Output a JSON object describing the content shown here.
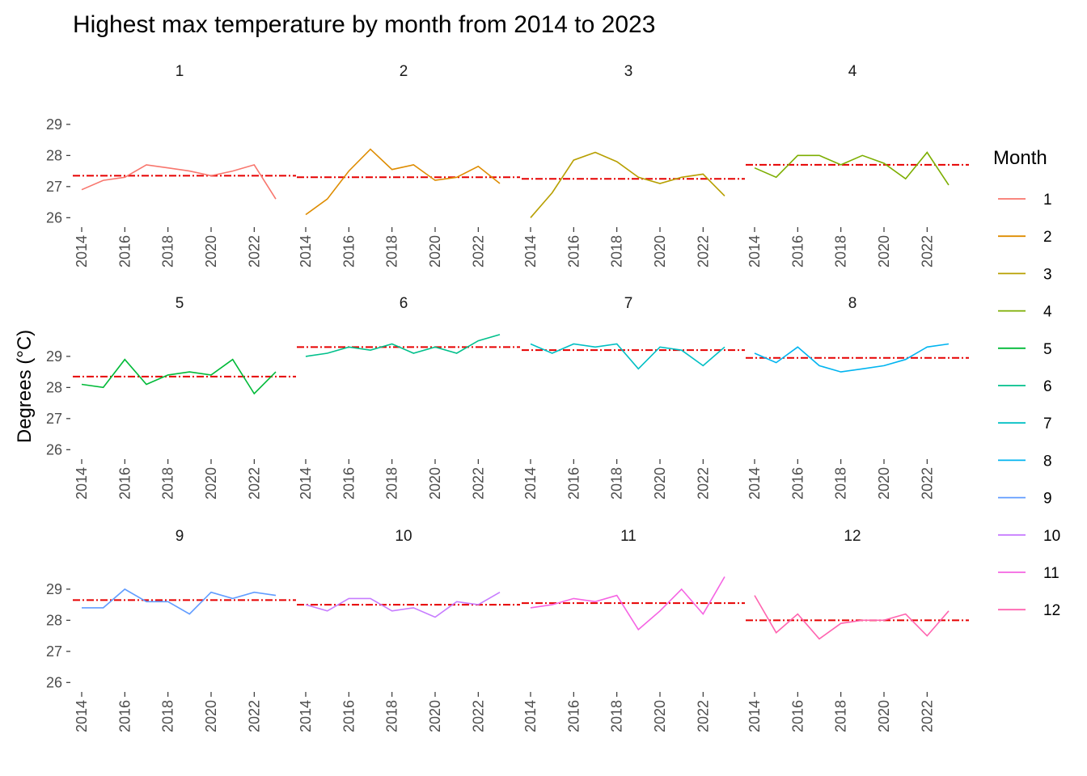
{
  "chart_data": {
    "type": "line",
    "title": "Highest max temperature by month from 2014 to 2023",
    "xlabel": "",
    "ylabel": "Degrees (°C)",
    "years": [
      2014,
      2015,
      2016,
      2017,
      2018,
      2019,
      2020,
      2021,
      2022,
      2023
    ],
    "x_ticks": [
      "2014",
      "2016",
      "2018",
      "2020",
      "2022"
    ],
    "y_ticks": [
      "26",
      "27",
      "28",
      "29"
    ],
    "ylim": [
      25.8,
      29.75
    ],
    "facet_layout": "4 columns x 3 rows",
    "grid": false,
    "reference_line": {
      "style": "dash-dot",
      "color": "#e60000",
      "meaning": "mean of series"
    },
    "legend": {
      "title": "Month",
      "position": "right"
    },
    "series": [
      {
        "name": "1",
        "color": "#F8766D",
        "mean": 27.35,
        "values": [
          26.9,
          27.2,
          27.3,
          27.7,
          27.6,
          27.5,
          27.35,
          27.5,
          27.7,
          26.6
        ]
      },
      {
        "name": "2",
        "color": "#DE8C00",
        "mean": 27.3,
        "values": [
          26.1,
          26.6,
          27.5,
          28.2,
          27.55,
          27.7,
          27.2,
          27.3,
          27.65,
          27.1
        ]
      },
      {
        "name": "3",
        "color": "#B79F00",
        "mean": 27.25,
        "values": [
          26.0,
          26.8,
          27.85,
          28.1,
          27.8,
          27.3,
          27.1,
          27.3,
          27.4,
          26.7
        ]
      },
      {
        "name": "4",
        "color": "#7CAE00",
        "mean": 27.7,
        "values": [
          27.6,
          27.3,
          28.0,
          28.0,
          27.7,
          28.0,
          27.75,
          27.25,
          28.1,
          27.05
        ]
      },
      {
        "name": "5",
        "color": "#00BA38",
        "mean": 28.35,
        "values": [
          28.1,
          28.0,
          28.9,
          28.1,
          28.4,
          28.5,
          28.4,
          28.9,
          27.8,
          28.5
        ]
      },
      {
        "name": "6",
        "color": "#00C08B",
        "mean": 29.3,
        "values": [
          29.0,
          29.1,
          29.3,
          29.2,
          29.4,
          29.1,
          29.3,
          29.1,
          29.5,
          29.7
        ]
      },
      {
        "name": "7",
        "color": "#00BFC4",
        "mean": 29.2,
        "values": [
          29.4,
          29.1,
          29.4,
          29.3,
          29.4,
          28.6,
          29.3,
          29.2,
          28.7,
          29.3
        ]
      },
      {
        "name": "8",
        "color": "#00B4F0",
        "mean": 28.95,
        "values": [
          29.1,
          28.8,
          29.3,
          28.7,
          28.5,
          28.6,
          28.7,
          28.9,
          29.3,
          29.4
        ]
      },
      {
        "name": "9",
        "color": "#619CFF",
        "mean": 28.65,
        "values": [
          28.4,
          28.4,
          29.0,
          28.6,
          28.6,
          28.2,
          28.9,
          28.7,
          28.9,
          28.8
        ]
      },
      {
        "name": "10",
        "color": "#C77CFF",
        "mean": 28.5,
        "values": [
          28.5,
          28.3,
          28.7,
          28.7,
          28.3,
          28.4,
          28.1,
          28.6,
          28.5,
          28.9
        ]
      },
      {
        "name": "11",
        "color": "#F564E3",
        "mean": 28.55,
        "values": [
          28.4,
          28.5,
          28.7,
          28.6,
          28.8,
          27.7,
          28.3,
          29.0,
          28.2,
          29.4
        ]
      },
      {
        "name": "12",
        "color": "#FF64B0",
        "mean": 28.0,
        "values": [
          28.8,
          27.6,
          28.2,
          27.4,
          27.9,
          28.0,
          28.0,
          28.2,
          27.5,
          28.3
        ]
      }
    ]
  }
}
